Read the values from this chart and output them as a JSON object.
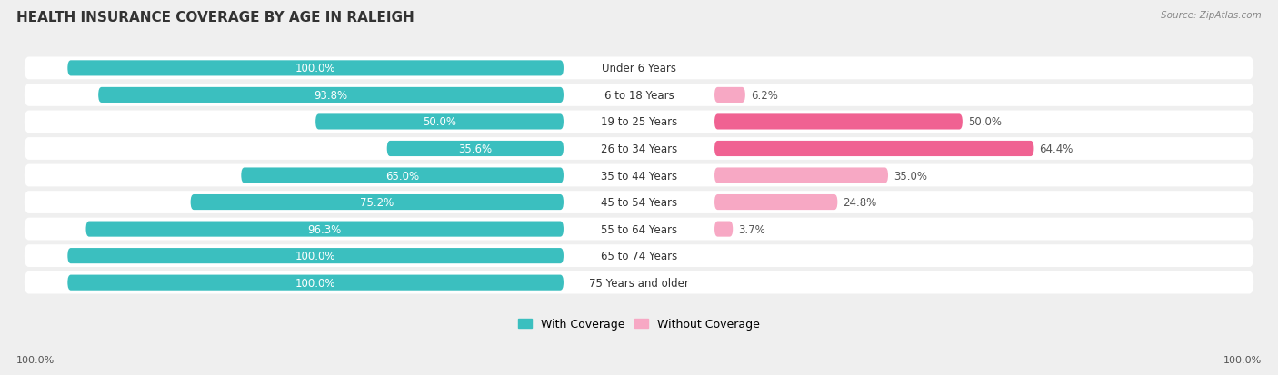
{
  "title": "HEALTH INSURANCE COVERAGE BY AGE IN RALEIGH",
  "source": "Source: ZipAtlas.com",
  "categories": [
    "Under 6 Years",
    "6 to 18 Years",
    "19 to 25 Years",
    "26 to 34 Years",
    "35 to 44 Years",
    "45 to 54 Years",
    "55 to 64 Years",
    "65 to 74 Years",
    "75 Years and older"
  ],
  "with_coverage": [
    100.0,
    93.8,
    50.0,
    35.6,
    65.0,
    75.2,
    96.3,
    100.0,
    100.0
  ],
  "without_coverage": [
    0.0,
    6.2,
    50.0,
    64.4,
    35.0,
    24.8,
    3.7,
    0.0,
    0.0
  ],
  "color_with": "#3bbfbf",
  "color_without_light": "#f7a8c4",
  "color_without_dark": "#f06292",
  "bg_color": "#f0f0f0",
  "title_fontsize": 11,
  "label_fontsize": 8.5,
  "legend_fontsize": 9,
  "axis_label_bottom_left": "100.0%",
  "axis_label_bottom_right": "100.0%"
}
